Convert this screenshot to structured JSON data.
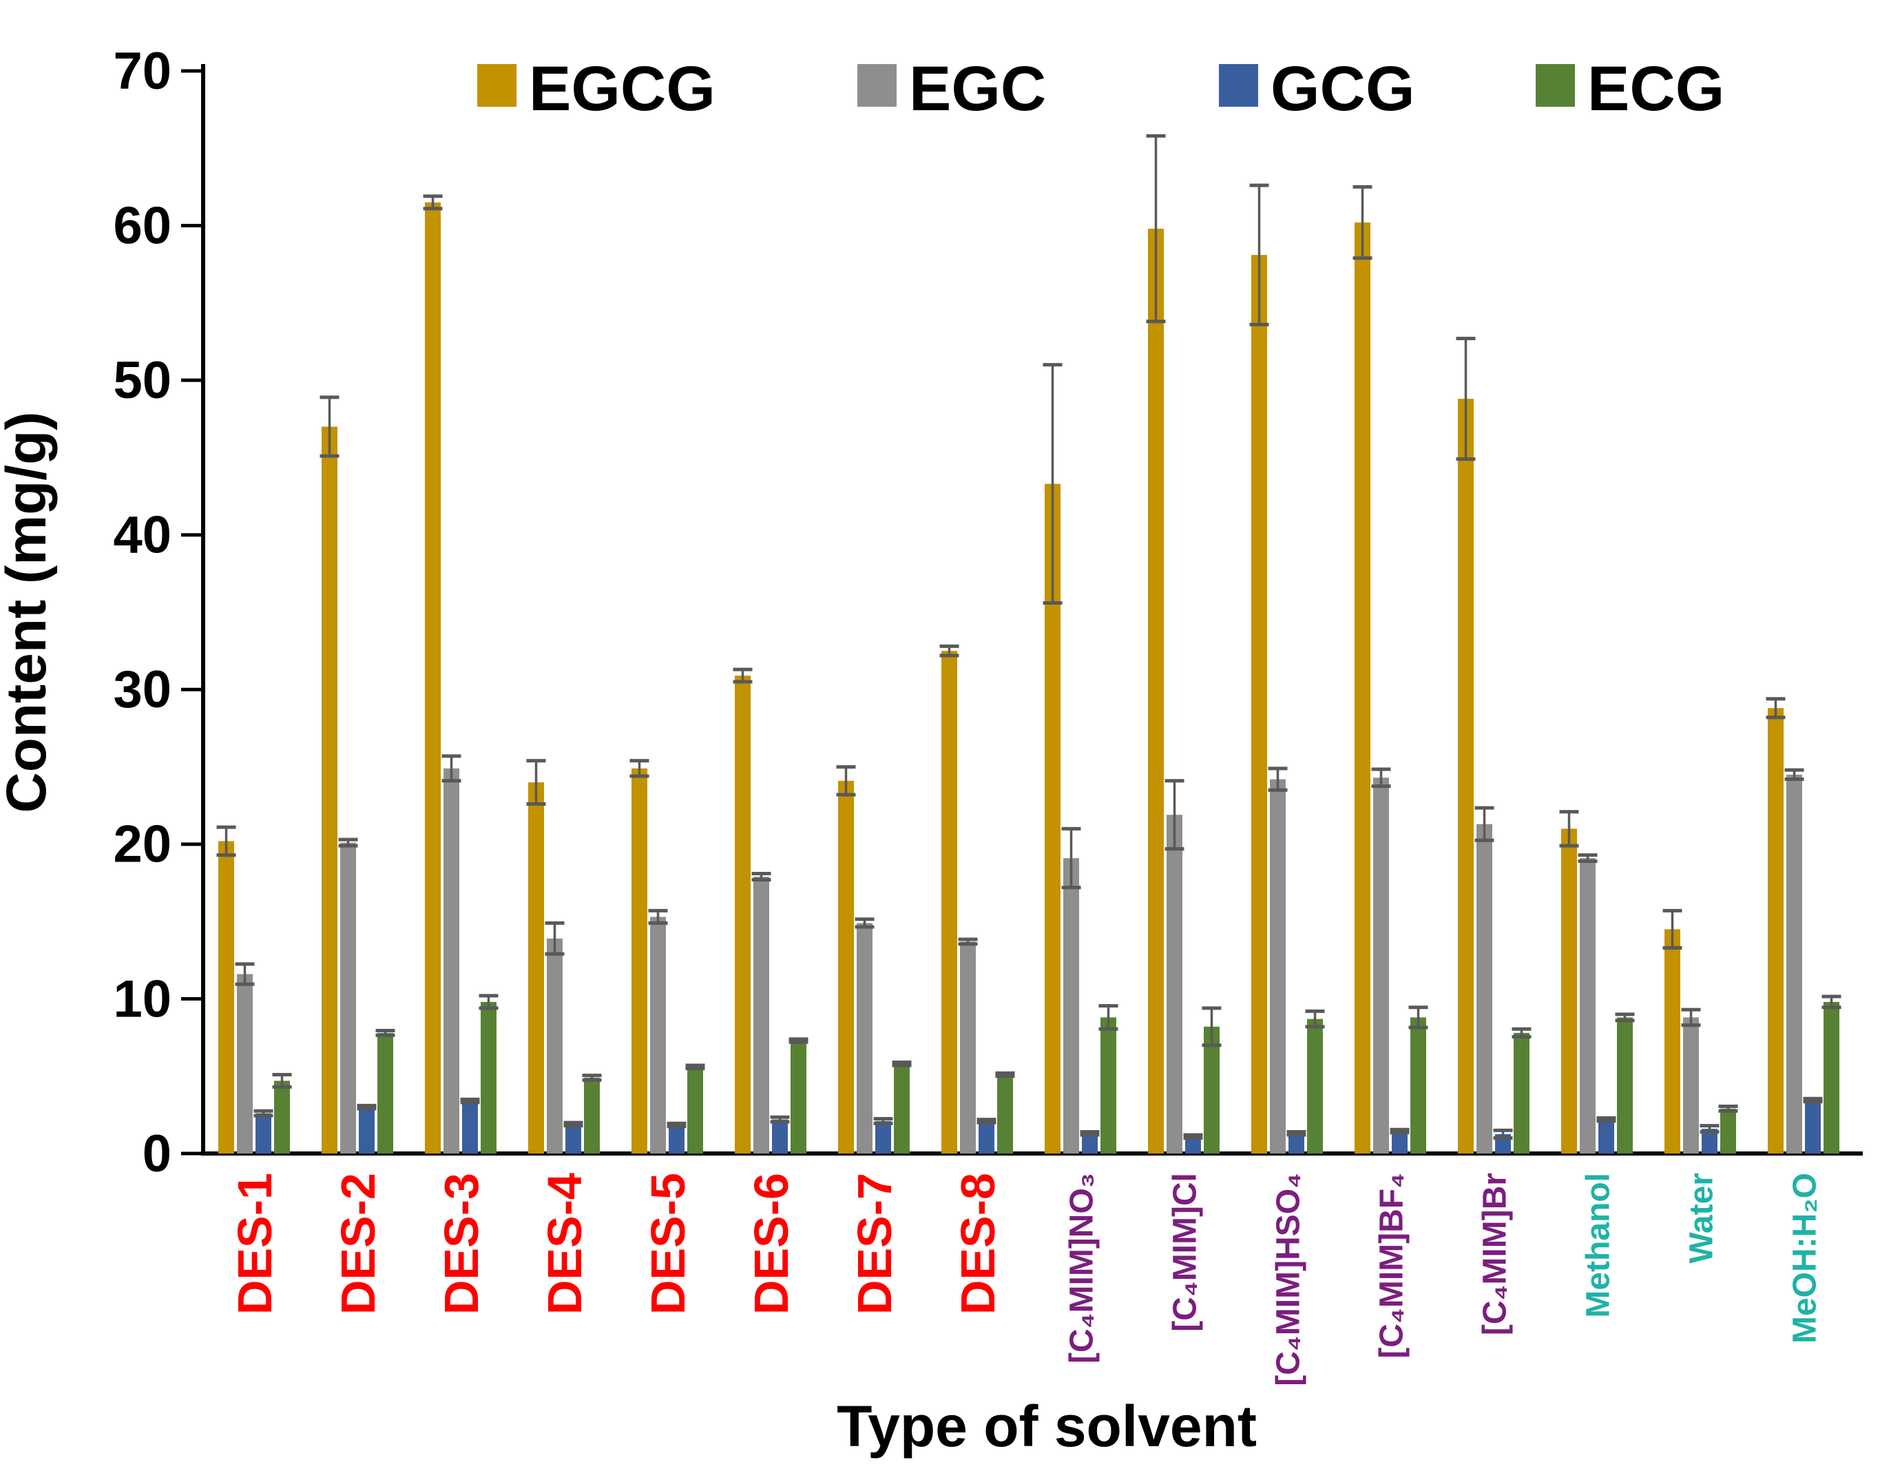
{
  "chart_data": {
    "type": "bar",
    "title": "",
    "xlabel": "Type of solvent",
    "ylabel": "Content (mg/g)",
    "ylim": [
      0,
      70
    ],
    "yticks": [
      0,
      10,
      20,
      30,
      40,
      50,
      60,
      70
    ],
    "grid": false,
    "legend_position": "top-inside",
    "error_bar_color": "#595959",
    "axis_color": "#000000",
    "tick_label_color": "#000000",
    "category_label_colors": {
      "des": "#FF0000",
      "ionic": "#7B1E7E",
      "conventional": "#1FB2A6"
    },
    "categories": [
      {
        "label": "DES-1",
        "group": "des"
      },
      {
        "label": "DES-2",
        "group": "des"
      },
      {
        "label": "DES-3",
        "group": "des"
      },
      {
        "label": "DES-4",
        "group": "des"
      },
      {
        "label": "DES-5",
        "group": "des"
      },
      {
        "label": "DES-6",
        "group": "des"
      },
      {
        "label": "DES-7",
        "group": "des"
      },
      {
        "label": "DES-8",
        "group": "des"
      },
      {
        "label": "[C₄MIM]NO₃",
        "group": "ionic"
      },
      {
        "label": "[C₄MIM]Cl",
        "group": "ionic"
      },
      {
        "label": "[C₄MIM]HSO₄",
        "group": "ionic"
      },
      {
        "label": "[C₄MIM]BF₄",
        "group": "ionic"
      },
      {
        "label": "[C₄MIM]Br",
        "group": "ionic"
      },
      {
        "label": "Methanol",
        "group": "conventional"
      },
      {
        "label": "Water",
        "group": "conventional"
      },
      {
        "label": "MeOH:H₂O",
        "group": "conventional"
      }
    ],
    "series": [
      {
        "name": "EGCG",
        "color": "#C29200",
        "values": [
          20.2,
          47.0,
          61.5,
          24.0,
          24.9,
          30.9,
          24.1,
          32.5,
          43.3,
          59.8,
          58.1,
          60.2,
          48.8,
          21.0,
          14.5,
          28.8
        ],
        "errors": [
          0.9,
          1.9,
          0.4,
          1.4,
          0.5,
          0.4,
          0.9,
          0.3,
          7.7,
          6.0,
          4.5,
          2.3,
          3.9,
          1.1,
          1.2,
          0.6
        ]
      },
      {
        "name": "EGC",
        "color": "#8E8E8E",
        "values": [
          11.6,
          20.1,
          24.9,
          13.9,
          15.3,
          17.9,
          14.9,
          13.7,
          19.1,
          21.9,
          24.2,
          24.3,
          21.3,
          19.1,
          8.8,
          24.5
        ],
        "errors": [
          0.65,
          0.2,
          0.8,
          1.0,
          0.4,
          0.2,
          0.25,
          0.15,
          1.9,
          2.2,
          0.7,
          0.55,
          1.05,
          0.2,
          0.5,
          0.3
        ]
      },
      {
        "name": "GCG",
        "color": "#3A5F9F",
        "values": [
          2.6,
          3.0,
          3.4,
          1.9,
          1.85,
          2.2,
          2.1,
          2.1,
          1.3,
          1.1,
          1.3,
          1.45,
          1.25,
          2.2,
          1.6,
          3.45
        ],
        "errors": [
          0.15,
          0.1,
          0.1,
          0.1,
          0.1,
          0.15,
          0.15,
          0.1,
          0.1,
          0.1,
          0.1,
          0.1,
          0.25,
          0.1,
          0.2,
          0.1
        ]
      },
      {
        "name": "ECG",
        "color": "#578233",
        "values": [
          4.7,
          7.8,
          9.8,
          4.9,
          5.6,
          7.3,
          5.8,
          5.1,
          8.8,
          8.2,
          8.7,
          8.8,
          7.8,
          8.8,
          2.9,
          9.8
        ],
        "errors": [
          0.4,
          0.15,
          0.4,
          0.15,
          0.1,
          0.1,
          0.1,
          0.1,
          0.75,
          1.2,
          0.5,
          0.65,
          0.25,
          0.2,
          0.15,
          0.35
        ]
      }
    ]
  }
}
